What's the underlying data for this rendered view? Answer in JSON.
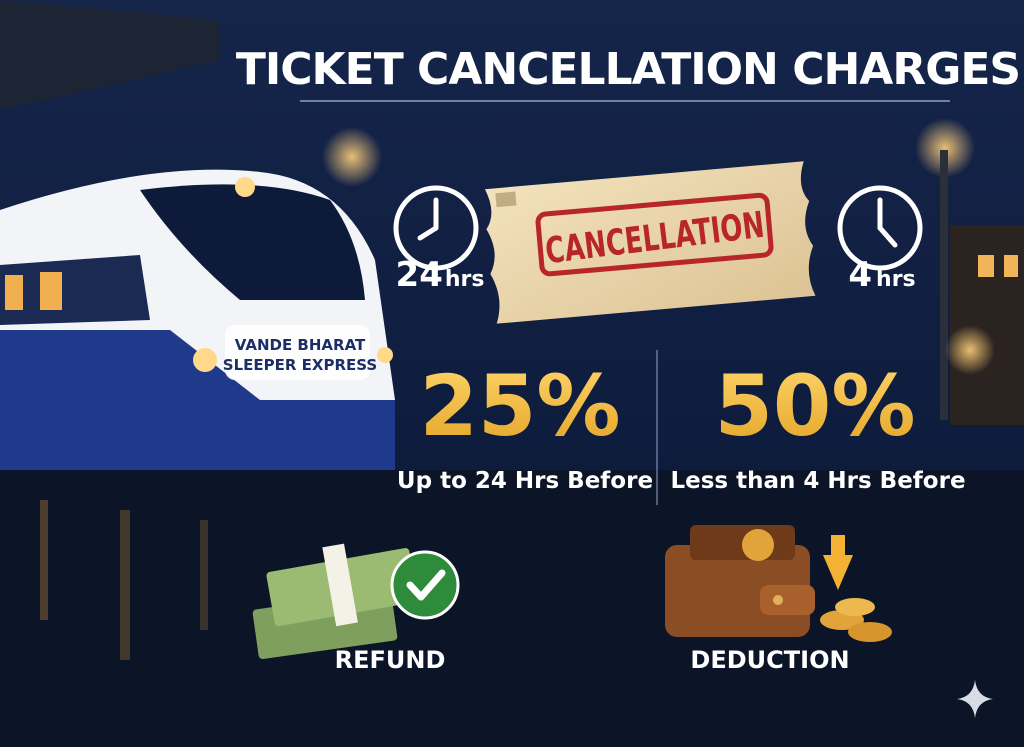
{
  "header": {
    "title": "TICKET CANCELLATION CHARGES"
  },
  "train": {
    "line1": "VANDE BHARAT",
    "line2": "SLEEPER EXPRESS"
  },
  "ticket": {
    "stamp": "CANCELLATION"
  },
  "clocks": [
    {
      "number": "24",
      "unit": "hrs"
    },
    {
      "number": "4",
      "unit": "hrs"
    }
  ],
  "charges": [
    {
      "percent": "25%",
      "caption": "Up to 24 Hrs Before"
    },
    {
      "percent": "50%",
      "caption": "Less than 4 Hrs Before"
    }
  ],
  "icons": [
    {
      "label": "REFUND"
    },
    {
      "label": "DEDUCTION"
    }
  ]
}
